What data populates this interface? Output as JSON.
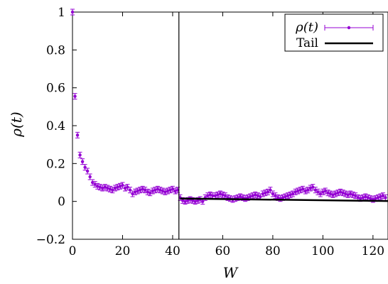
{
  "chart_data": {
    "type": "scatter",
    "xlabel": "W",
    "ylabel": "ρ(t)",
    "xlim": [
      0,
      126
    ],
    "ylim": [
      -0.2,
      1.0
    ],
    "x_ticks": [
      0,
      20,
      40,
      60,
      80,
      100,
      120
    ],
    "x_tick_labels": [
      "0",
      "20",
      "40",
      "60",
      "80",
      "100",
      "120"
    ],
    "y_ticks": [
      -0.2,
      0,
      0.2,
      0.4,
      0.6,
      0.8,
      1.0
    ],
    "y_tick_labels": [
      "−0.2",
      "0",
      "0.2",
      "0.4",
      "0.6",
      "0.8",
      "1"
    ],
    "grid": false,
    "legend_position": "top-right",
    "series": [
      {
        "name": "ρ(t)",
        "style": "points-with-errorbars",
        "color": "#9400d3",
        "x": [
          0,
          1,
          2,
          3,
          4,
          5,
          6,
          7,
          8,
          9,
          10,
          11,
          12,
          13,
          14,
          15,
          16,
          17,
          18,
          19,
          20,
          21,
          22,
          23,
          24,
          25,
          26,
          27,
          28,
          29,
          30,
          31,
          32,
          33,
          34,
          35,
          36,
          37,
          38,
          39,
          40,
          41,
          42,
          43,
          44,
          45,
          46,
          47,
          48,
          49,
          50,
          51,
          52,
          53,
          54,
          55,
          56,
          57,
          58,
          59,
          60,
          61,
          62,
          63,
          64,
          65,
          66,
          67,
          68,
          69,
          70,
          71,
          72,
          73,
          74,
          75,
          76,
          77,
          78,
          79,
          80,
          81,
          82,
          83,
          84,
          85,
          86,
          87,
          88,
          89,
          90,
          91,
          92,
          93,
          94,
          95,
          96,
          97,
          98,
          99,
          100,
          101,
          102,
          103,
          104,
          105,
          106,
          107,
          108,
          109,
          110,
          111,
          112,
          113,
          114,
          115,
          116,
          117,
          118,
          119,
          120,
          121,
          122,
          123,
          124,
          125
        ],
        "y": [
          1.0,
          0.555,
          0.35,
          0.245,
          0.21,
          0.18,
          0.16,
          0.13,
          0.1,
          0.09,
          0.08,
          0.075,
          0.07,
          0.075,
          0.07,
          0.065,
          0.06,
          0.07,
          0.075,
          0.08,
          0.085,
          0.07,
          0.075,
          0.06,
          0.04,
          0.05,
          0.055,
          0.06,
          0.065,
          0.06,
          0.05,
          0.045,
          0.055,
          0.06,
          0.065,
          0.06,
          0.055,
          0.05,
          0.055,
          0.06,
          0.065,
          0.055,
          0.06,
          0.02,
          0.005,
          0.0,
          0.005,
          0.01,
          0.005,
          0.0,
          0.005,
          0.01,
          0.0,
          0.02,
          0.03,
          0.035,
          0.03,
          0.03,
          0.035,
          0.04,
          0.035,
          0.03,
          0.02,
          0.015,
          0.01,
          0.015,
          0.02,
          0.025,
          0.02,
          0.015,
          0.02,
          0.025,
          0.03,
          0.035,
          0.03,
          0.025,
          0.04,
          0.045,
          0.05,
          0.06,
          0.04,
          0.03,
          0.02,
          0.015,
          0.02,
          0.025,
          0.03,
          0.035,
          0.04,
          0.05,
          0.055,
          0.06,
          0.065,
          0.055,
          0.06,
          0.07,
          0.075,
          0.06,
          0.05,
          0.04,
          0.05,
          0.055,
          0.045,
          0.04,
          0.035,
          0.04,
          0.045,
          0.05,
          0.045,
          0.04,
          0.035,
          0.04,
          0.035,
          0.03,
          0.02,
          0.015,
          0.02,
          0.025,
          0.02,
          0.015,
          0.01,
          0.015,
          0.02,
          0.025,
          0.03,
          0.02
        ],
        "error": 0.015
      },
      {
        "name": "Tail",
        "style": "line",
        "color": "#000000",
        "x": [
          43,
          126
        ],
        "y": [
          0.015,
          0.002
        ]
      }
    ],
    "annotations": [
      {
        "type": "vertical-line",
        "x": 42.5,
        "color": "#000000"
      }
    ]
  }
}
